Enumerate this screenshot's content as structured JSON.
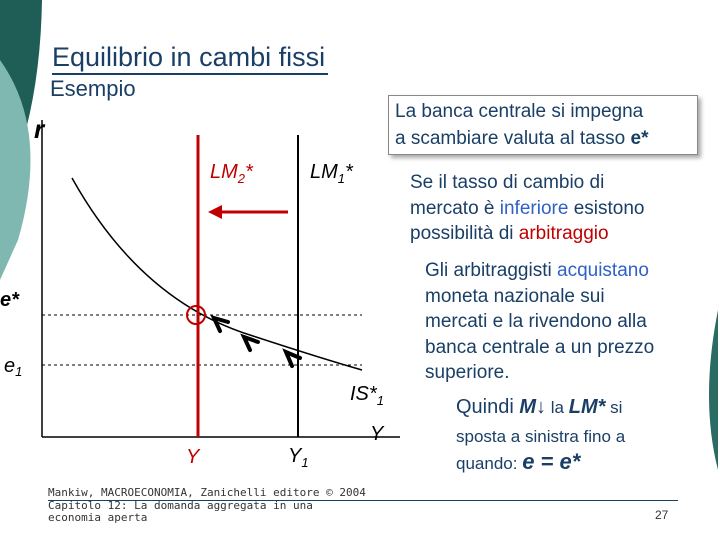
{
  "slide": {
    "title": "Equilibrio in cambi fissi",
    "subtitle": "Esempio",
    "box_text_1": "La banca centrale si impegna",
    "box_text_2": "a scambiare valuta al tasso ",
    "box_emph": "e*",
    "para1": {
      "l1": "Se il tasso di cambio di",
      "l2a": "mercato è ",
      "l2b": "inferiore",
      "l2c": " esistono",
      "l3a": "possibilità di ",
      "l3b": "arbitraggio"
    },
    "para2": {
      "l1a": "Gli arbitraggisti ",
      "l1b": "acquistano",
      "l2": "moneta nazionale sui",
      "l3": "mercati e la rivendono alla",
      "l4": "banca centrale a un prezzo",
      "l5": "superiore."
    },
    "para3": {
      "l1a": "Quindi ",
      "l1b": "M",
      "l1c": "↓",
      "l1d": " la ",
      "l1e": "LM*",
      "l1f": " si",
      "l2": "sposta a sinistra fino a",
      "l3a": "quando: ",
      "l3b": "e = e*"
    },
    "footer_1": "Mankiw, MACROECONOMIA, Zanichelli editore © 2004",
    "footer_2": "Capitolo 12: La domanda aggregata in una",
    "footer_3": "economia aperta",
    "page_number": "27"
  },
  "diagram": {
    "y_axis_label": "r",
    "x_axis_label": "Y",
    "e_star_label": "e*",
    "e1_label": "e",
    "e1_sub": "1",
    "lm2_label": "LM",
    "lm2_sub": "2",
    "lm2_star": "*",
    "lm1_label": "LM",
    "lm1_sub": "1",
    "lm1_star": "*",
    "is_label": "IS*",
    "is_sub": "1",
    "y_tick_label": "Y",
    "y1_label": "Y",
    "y1_sub": "1",
    "colors": {
      "lm2": "#c00000",
      "lm1": "#000000",
      "arrow": "#c00000",
      "is": "#000000",
      "gray_arrows": "#000000",
      "title": "#1a3f66"
    }
  }
}
